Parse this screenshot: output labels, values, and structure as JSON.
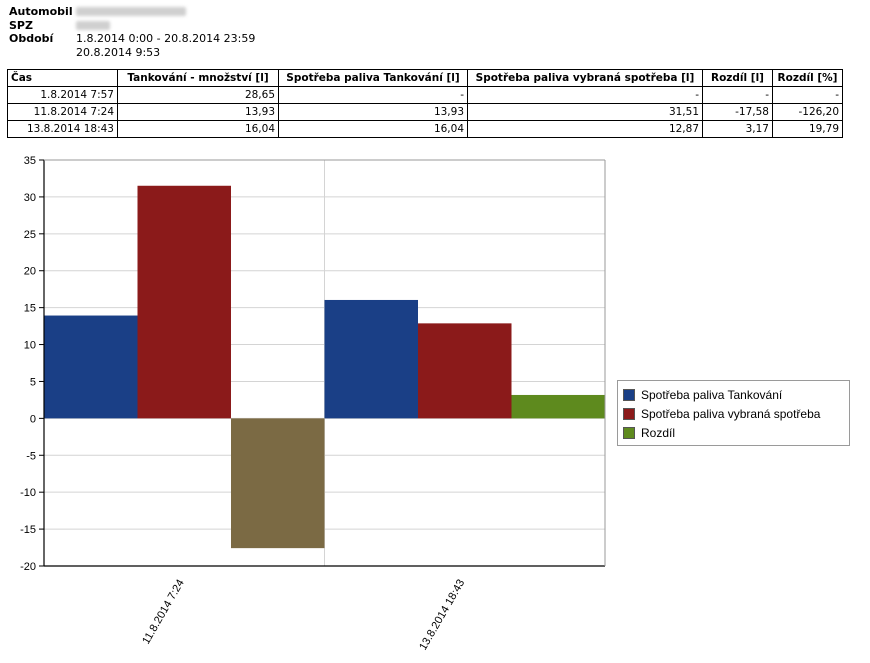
{
  "header": {
    "vehicle_label": "Automobil",
    "plate_label": "SPZ",
    "period_label": "Období",
    "period_value": "1.8.2014 0:00 - 20.8.2014 23:59",
    "generated": "20.8.2014 9:53"
  },
  "table": {
    "columns": [
      "Čas",
      "Tankování - množství [l]",
      "Spotřeba paliva Tankování [l]",
      "Spotřeba paliva vybraná spotřeba [l]",
      "Rozdíl [l]",
      "Rozdíl [%]"
    ],
    "rows": [
      [
        "1.8.2014 7:57",
        "28,65",
        "-",
        "-",
        "-",
        "-"
      ],
      [
        "11.8.2014 7:24",
        "13,93",
        "13,93",
        "31,51",
        "-17,58",
        "-126,20"
      ],
      [
        "13.8.2014 18:43",
        "16,04",
        "16,04",
        "12,87",
        "3,17",
        "19,79"
      ]
    ]
  },
  "chart_data": {
    "type": "bar",
    "categories": [
      "11.8.2014 7:24",
      "13.8.2014 18:43"
    ],
    "series": [
      {
        "name": "Spotřeba paliva Tankování",
        "values": [
          13.93,
          16.04
        ],
        "color": "#1a3f86"
      },
      {
        "name": "Spotřeba paliva vybraná spotřeba",
        "values": [
          31.51,
          12.87
        ],
        "color": "#8b1a1a"
      },
      {
        "name": "Rozdíl",
        "values": [
          -17.58,
          3.17
        ],
        "color": "#5e8a1e",
        "negative_color": "#7b6a44"
      }
    ],
    "ylim": [
      -20,
      35
    ],
    "yticks": [
      -20,
      -15,
      -10,
      -5,
      0,
      5,
      10,
      15,
      20,
      25,
      30,
      35
    ],
    "grid": true,
    "legend": "right"
  }
}
